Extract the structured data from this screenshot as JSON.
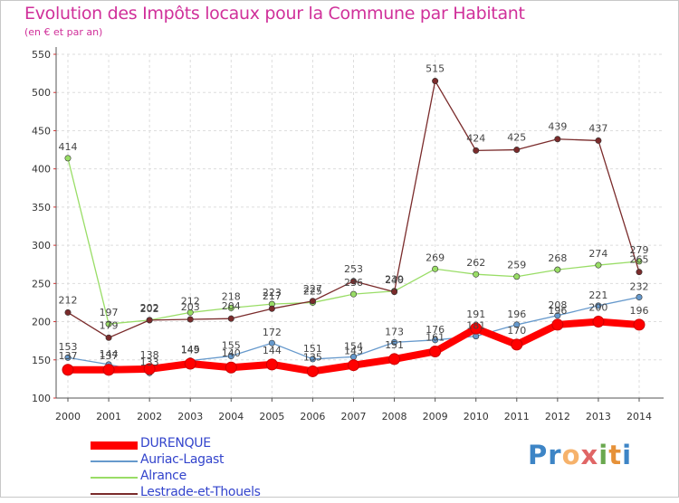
{
  "title": "Evolution des Impôts locaux pour la Commune par Habitant",
  "subtitle": "(en € et par an)",
  "logo": [
    "P",
    "r",
    "o",
    "x",
    "i",
    "t",
    "i"
  ],
  "logo_colors": [
    "#3d85c6",
    "#3d85c6",
    "#f6b26b",
    "#e06666",
    "#6aa84f",
    "#e69138",
    "#3d85c6"
  ],
  "chart_data": {
    "type": "line",
    "title": "Evolution des Impôts locaux pour la Commune par Habitant",
    "subtitle": "(en € et par an)",
    "xlabel": "",
    "ylabel": "",
    "x": [
      "2000",
      "2001",
      "2002",
      "2003",
      "2004",
      "2005",
      "2006",
      "2007",
      "2008",
      "2009",
      "2010",
      "2011",
      "2012",
      "2013",
      "2014"
    ],
    "ylim": [
      100,
      550
    ],
    "yticks": [
      "100",
      "150",
      "200",
      "250",
      "300",
      "350",
      "400",
      "450",
      "500",
      "550"
    ],
    "grid": true,
    "legend_position": "bottom-left",
    "series": [
      {
        "name": "DURENQUE",
        "color": "#ff0000",
        "values": [
          137,
          137,
          138,
          145,
          140,
          144,
          135,
          143,
          151,
          161,
          191,
          170,
          196,
          200,
          196
        ],
        "labels": [
          "137",
          "137",
          "138",
          "145",
          "140",
          "144",
          "135",
          "143",
          "151",
          "161",
          "191",
          "170",
          "196",
          "200",
          "196"
        ]
      },
      {
        "name": "Auriac-Lagast",
        "color": "#6699cc",
        "values": [
          153,
          144,
          133,
          149,
          155,
          172,
          151,
          154,
          173,
          176,
          181,
          196,
          208,
          221,
          232
        ],
        "labels": [
          "153",
          "144",
          "133",
          "149",
          "155",
          "172",
          "151",
          "154",
          "173",
          "176",
          "181",
          "196",
          "208",
          "221",
          "232"
        ]
      },
      {
        "name": "Alrance",
        "color": "#99dd66",
        "values": [
          414,
          197,
          202,
          212,
          218,
          223,
          225,
          236,
          240,
          269,
          262,
          259,
          268,
          274,
          279
        ],
        "labels": [
          "414",
          "197",
          "202",
          "212",
          "218",
          "223",
          "225",
          "236",
          "240",
          "269",
          "262",
          "259",
          "268",
          "274",
          "279"
        ]
      },
      {
        "name": "Lestrade-et-Thouels",
        "color": "#7a2b2b",
        "values": [
          212,
          179,
          202,
          203,
          204,
          217,
          227,
          253,
          239,
          515,
          424,
          425,
          439,
          437,
          265
        ],
        "labels": [
          "212",
          "179",
          "202",
          "203",
          "204",
          "217",
          "227",
          "253",
          "239",
          "515",
          "424",
          "425",
          "439",
          "437",
          "265"
        ]
      }
    ]
  }
}
